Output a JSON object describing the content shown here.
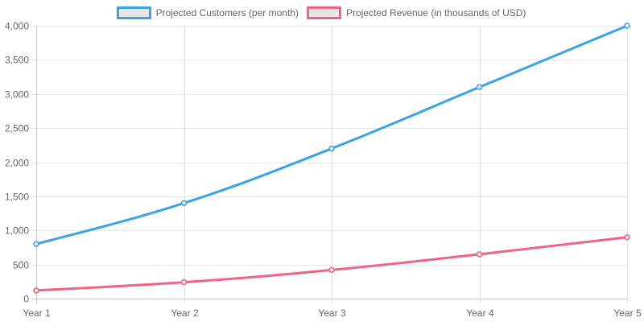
{
  "chart_data": {
    "type": "line",
    "categories": [
      "Year 1",
      "Year 2",
      "Year 3",
      "Year 4",
      "Year 5"
    ],
    "series": [
      {
        "name": "Projected Customers (per month)",
        "color": "#3ba3e5",
        "values": [
          800,
          1400,
          2200,
          3100,
          4000
        ]
      },
      {
        "name": "Projected Revenue (in thousands of USD)",
        "color": "#f0647f",
        "values": [
          120,
          240,
          420,
          650,
          900
        ]
      }
    ],
    "ylim": [
      0,
      4000
    ],
    "yticks": [
      0,
      500,
      1000,
      1500,
      2000,
      2500,
      3000,
      3500,
      4000
    ],
    "ytick_labels": [
      "0",
      "500",
      "1,000",
      "1,500",
      "2,000",
      "2,500",
      "3,000",
      "3,500",
      "4,000"
    ],
    "grid": true,
    "legend_position": "top-center"
  }
}
